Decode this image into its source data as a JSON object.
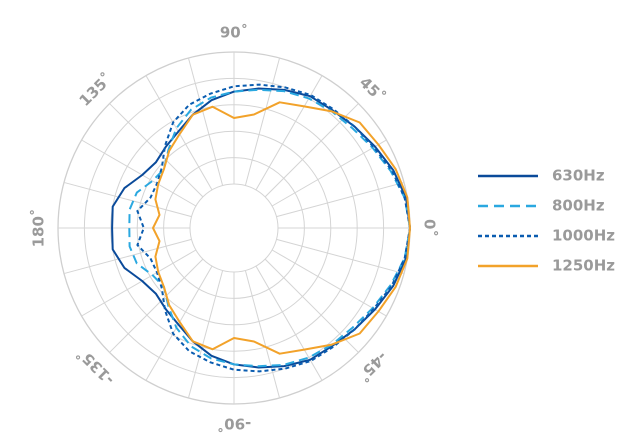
{
  "chart_data": {
    "type": "polar-line",
    "title": "",
    "radial_range": [
      0,
      1
    ],
    "grid": true,
    "legend_position": "right",
    "angle_labels": [
      {
        "angle": 0,
        "text": "0˚"
      },
      {
        "angle": 45,
        "text": "45˚"
      },
      {
        "angle": 90,
        "text": "90˚"
      },
      {
        "angle": 135,
        "text": "135˚"
      },
      {
        "angle": 180,
        "text": "180˚"
      },
      {
        "angle": -135,
        "text": "-135˚"
      },
      {
        "angle": -90,
        "text": "-90˚"
      },
      {
        "angle": -45,
        "text": "-45˚"
      }
    ],
    "angles": [
      0,
      10,
      20,
      30,
      40,
      50,
      60,
      70,
      80,
      90,
      100,
      110,
      120,
      130,
      140,
      150,
      160,
      170,
      180
    ],
    "series": [
      {
        "name": "630Hz",
        "color": "#0a4a9a",
        "dash": "solid",
        "r": [
          1.0,
          0.99,
          0.95,
          0.9,
          0.86,
          0.83,
          0.82,
          0.78,
          0.74,
          0.7,
          0.65,
          0.58,
          0.51,
          0.47,
          0.44,
          0.47,
          0.55,
          0.6,
          0.59
        ]
      },
      {
        "name": "800Hz",
        "color": "#2aa8e0",
        "dash": "dashed",
        "r": [
          1.0,
          0.98,
          0.93,
          0.88,
          0.84,
          0.82,
          0.8,
          0.77,
          0.73,
          0.7,
          0.67,
          0.62,
          0.54,
          0.44,
          0.36,
          0.38,
          0.45,
          0.47,
          0.46
        ]
      },
      {
        "name": "1000Hz",
        "color": "#0a5cb0",
        "dash": "dotted",
        "r": [
          1.0,
          0.98,
          0.94,
          0.89,
          0.86,
          0.84,
          0.83,
          0.8,
          0.77,
          0.74,
          0.7,
          0.66,
          0.59,
          0.48,
          0.38,
          0.34,
          0.34,
          0.41,
          0.35
        ]
      },
      {
        "name": "1250Hz",
        "color": "#f2a22a",
        "dash": "solid",
        "r": [
          1.0,
          1.0,
          0.97,
          0.93,
          0.91,
          0.82,
          0.73,
          0.68,
          0.54,
          0.5,
          0.6,
          0.58,
          0.49,
          0.43,
          0.36,
          0.33,
          0.3,
          0.24,
          0.28
        ]
      }
    ]
  },
  "legend": {
    "items": [
      {
        "label": "630Hz"
      },
      {
        "label": "800Hz"
      },
      {
        "label": "1000Hz"
      },
      {
        "label": "1250Hz"
      }
    ]
  }
}
